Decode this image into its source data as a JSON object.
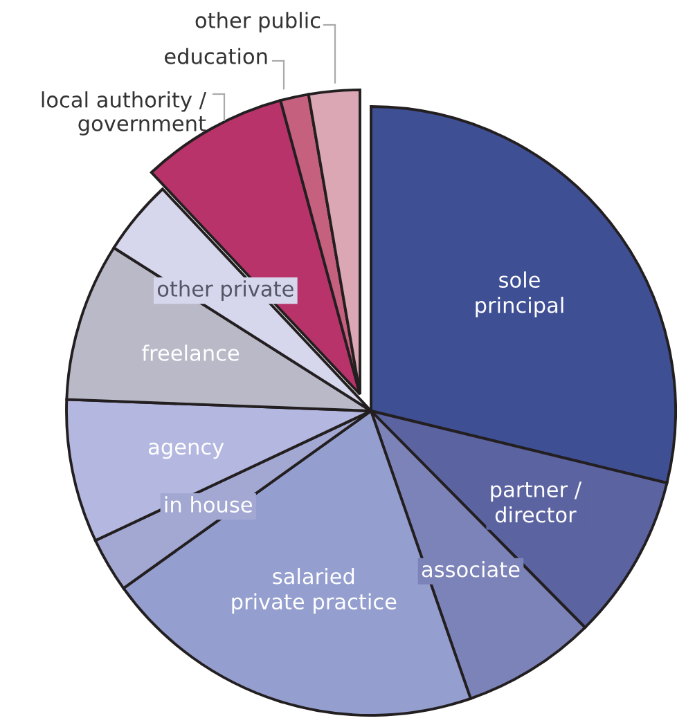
{
  "chart_data": {
    "type": "pie",
    "categories": [
      "sole\nprincipal",
      "partner /\ndirector",
      "associate",
      "salaried\nprivate practice",
      "in house",
      "agency",
      "freelance",
      "other private",
      "local authority /\ngovernment",
      "education",
      "other public"
    ],
    "values": [
      28.8,
      8.8,
      7.1,
      20.4,
      2.9,
      7.6,
      8.4,
      4.0,
      7.8,
      1.5,
      2.7
    ],
    "colors": [
      "#3f4f94",
      "#5b63a0",
      "#7c83b8",
      "#959fcf",
      "#a3a8d3",
      "#b4b8e0",
      "#b9b9c8",
      "#d6d6ec",
      "#b8336a",
      "#c5607f",
      "#dba7b4"
    ],
    "legend": false
  }
}
